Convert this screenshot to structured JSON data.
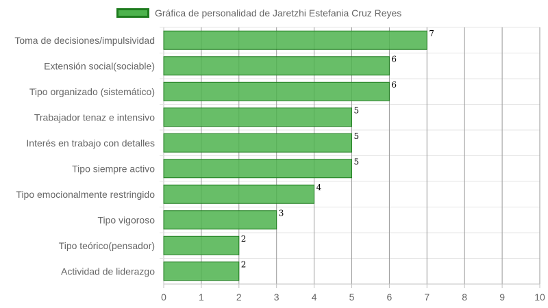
{
  "chart_data": {
    "type": "bar",
    "orientation": "horizontal",
    "categories": [
      "Toma de decisiones/impulsividad",
      "Extensión social(sociable)",
      "Tipo organizado (sistemático)",
      "Trabajador tenaz e intensivo",
      "Interés en trabajo con detalles",
      "Tipo siempre activo",
      "Tipo emocionalmente restringido",
      "Tipo vigoroso",
      "Tipo teórico(pensador)",
      "Actividad de liderazgo"
    ],
    "series": [
      {
        "name": "Gráfica de personalidad de Jaretzhi Estefania Cruz Reyes",
        "values": [
          7,
          6,
          6,
          5,
          5,
          5,
          4,
          3,
          2,
          2
        ],
        "color": "#4db34d",
        "border_color": "#1e7b1e"
      }
    ],
    "x_ticks": [
      "0",
      "1",
      "2",
      "3",
      "4",
      "5",
      "6",
      "7",
      "8",
      "9",
      "10"
    ],
    "xlim": [
      0,
      10
    ],
    "grid": true,
    "legend_position": "top",
    "data_labels": true
  }
}
